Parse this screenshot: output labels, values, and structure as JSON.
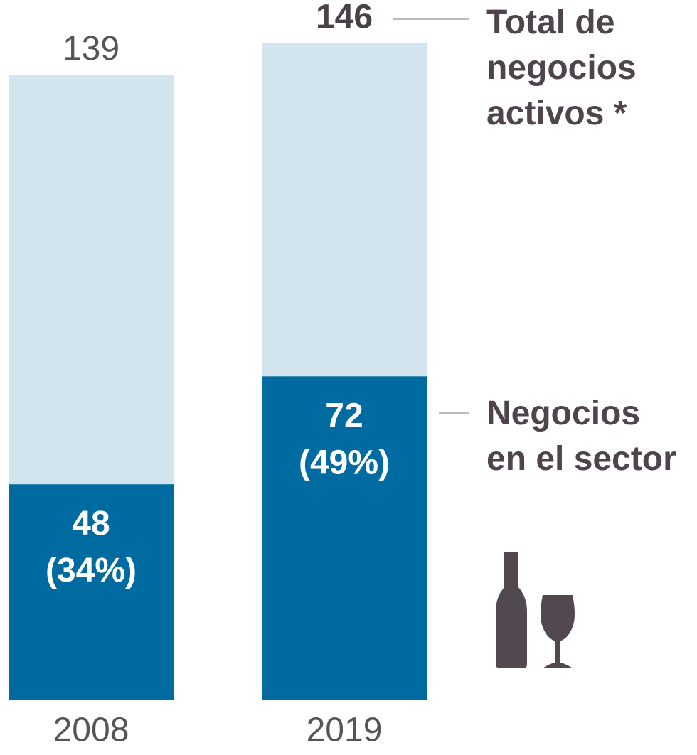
{
  "chart_data": {
    "type": "overlap-bar",
    "categories": [
      "2008",
      "2019"
    ],
    "series": [
      {
        "name": "Total de negocios activos *",
        "color": "#d2e5ee",
        "values": [
          139,
          146
        ]
      },
      {
        "name": "Negocios en el sector",
        "color": "#006ba1",
        "values": [
          48,
          72
        ],
        "value_labels": [
          "48 (34%)",
          "72 (49%)"
        ]
      }
    ]
  }
}
